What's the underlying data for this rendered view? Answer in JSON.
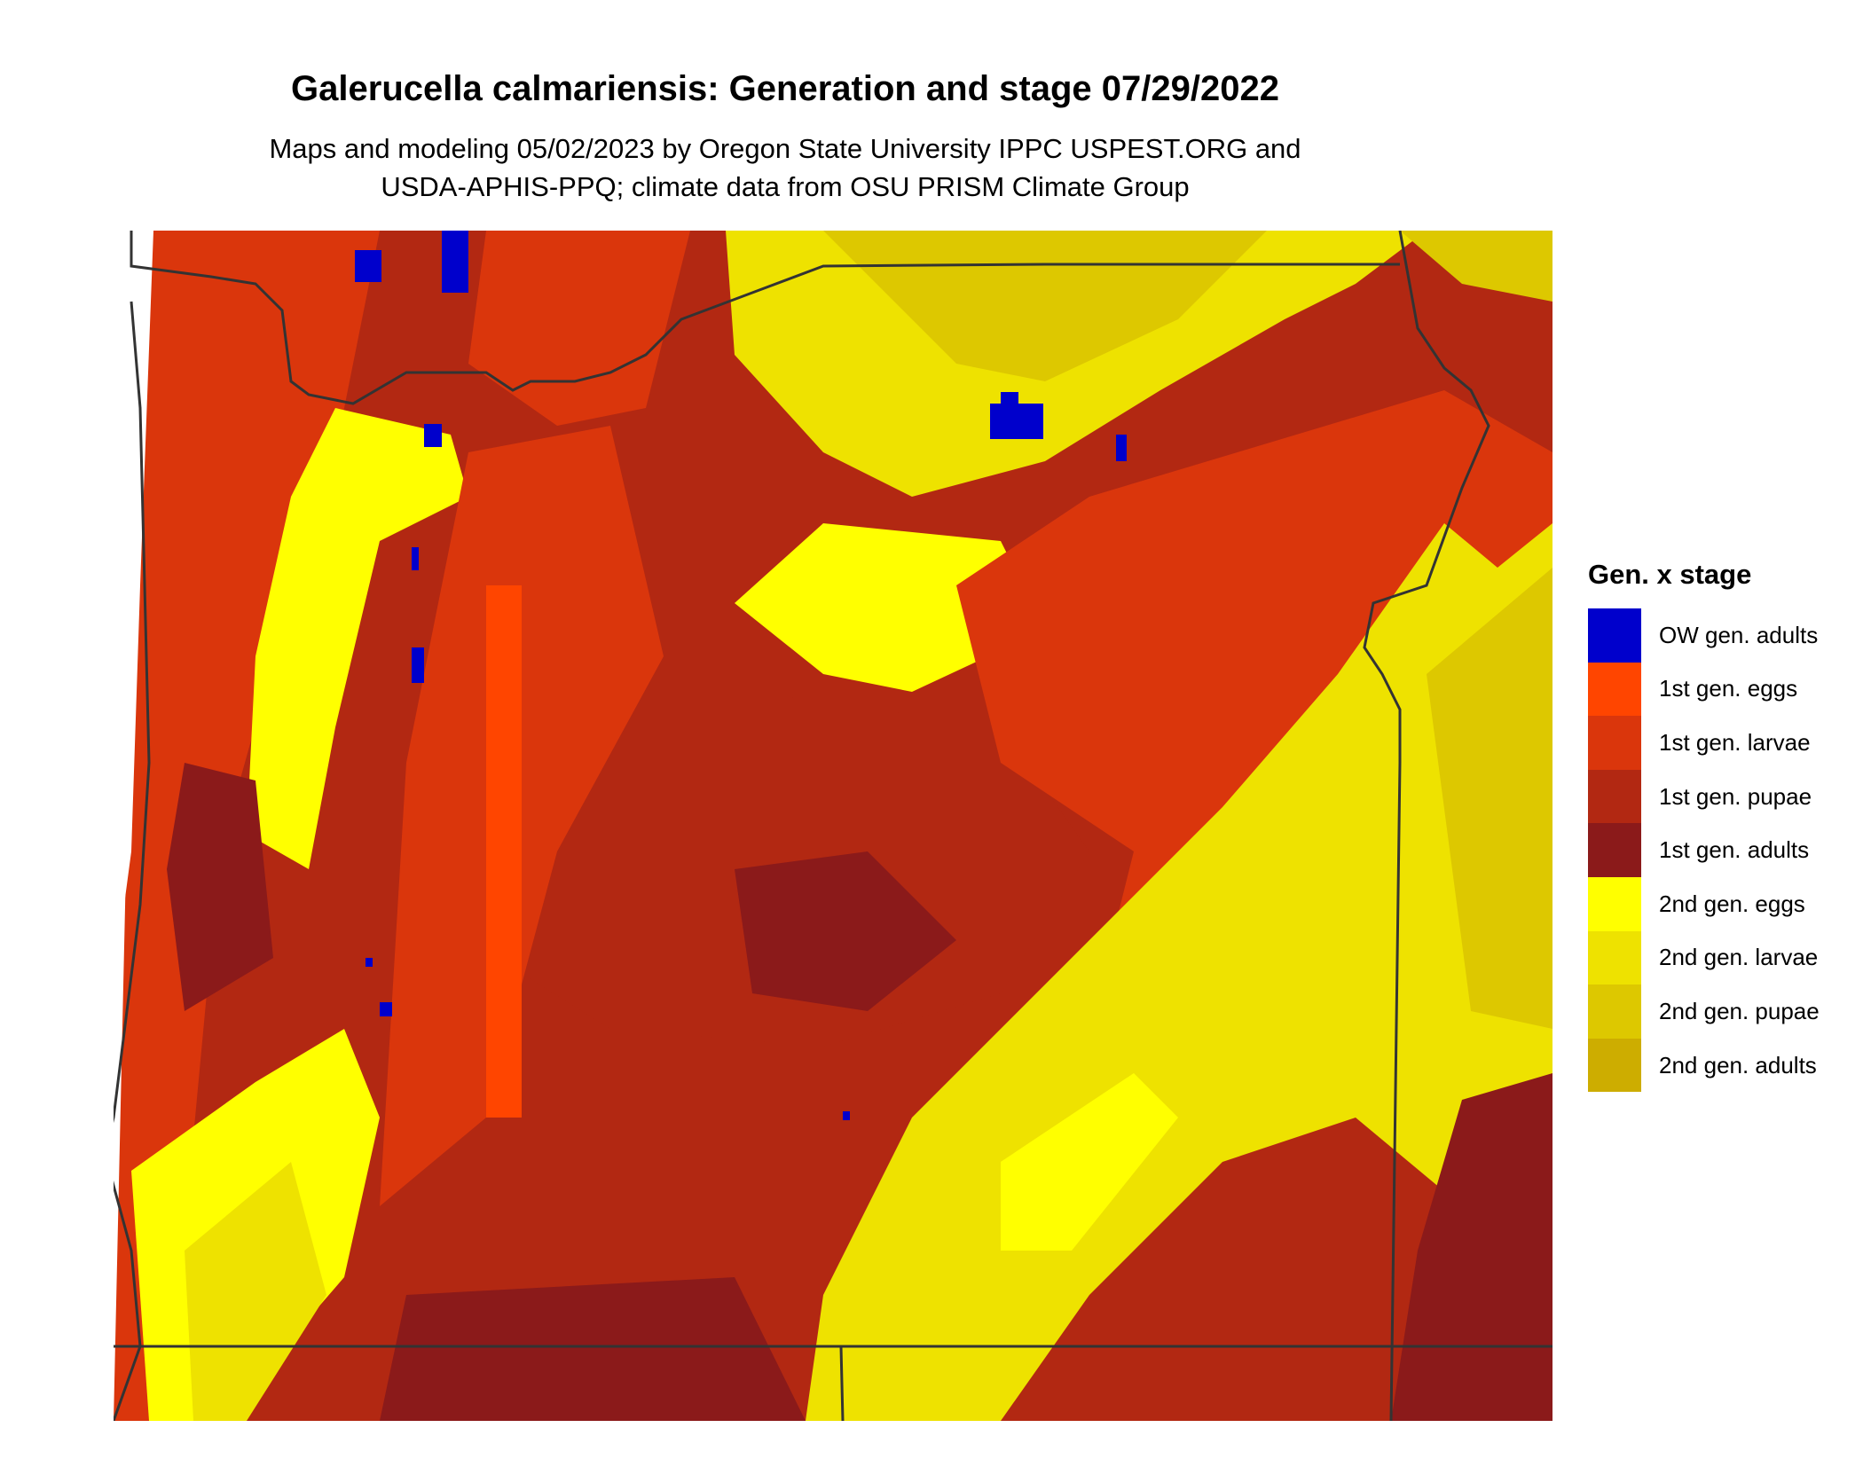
{
  "title": "Galerucella calmariensis: Generation and stage 07/29/2022",
  "subtitle_line1": "Maps and modeling 05/02/2023 by Oregon State University IPPC USPEST.ORG and",
  "subtitle_line2": "USDA-APHIS-PPQ; climate data from OSU PRISM Climate Group",
  "legend": {
    "title": "Gen. x stage",
    "items": [
      {
        "label": "OW gen. adults",
        "color": "#0000CC"
      },
      {
        "label": "1st gen. eggs",
        "color": "#FF4500"
      },
      {
        "label": "1st gen. larvae",
        "color": "#DA360C"
      },
      {
        "label": "1st gen. pupae",
        "color": "#B22812"
      },
      {
        "label": "1st gen. adults",
        "color": "#8B1A1A"
      },
      {
        "label": "2nd gen. eggs",
        "color": "#FFFF00"
      },
      {
        "label": "2nd gen. larvae",
        "color": "#EEE200"
      },
      {
        "label": "2nd gen. pupae",
        "color": "#DDC800"
      },
      {
        "label": "2nd gen. adults",
        "color": "#CDAD00"
      }
    ]
  },
  "border_color": "#333333"
}
